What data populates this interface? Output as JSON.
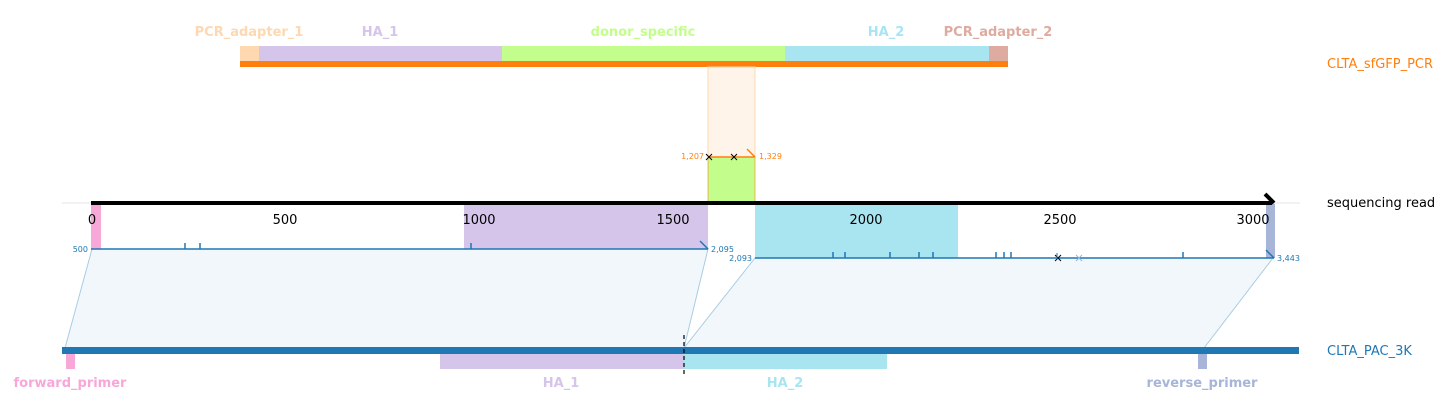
{
  "tracks": {
    "pcr": {
      "name": "CLTA_sfGFP_PCR",
      "color": "#ff7f0e"
    },
    "read": {
      "name": "sequencing read",
      "color": "#000000"
    },
    "pac": {
      "name": "CLTA_PAC_3K",
      "color": "#1f77b4"
    }
  },
  "pcr_features": [
    {
      "label": "PCR_adapter_1",
      "color": "#fdd8b0"
    },
    {
      "label": "HA_1",
      "color": "#d6c5ea"
    },
    {
      "label": "donor_specific",
      "color": "#c3fe8c"
    },
    {
      "label": "HA_2",
      "color": "#a8e5f0"
    },
    {
      "label": "PCR_adapter_2",
      "color": "#deaba0"
    }
  ],
  "pcr_alignment": {
    "start_label": "1,207",
    "end_label": "1,329"
  },
  "read_axis": {
    "ticks": [
      "0",
      "500",
      "1000",
      "1500",
      "2000",
      "2500",
      "3000"
    ]
  },
  "read_alignments": {
    "left": {
      "start_label": "500",
      "end_label": "2,095",
      "color": "#1f77b4"
    },
    "right": {
      "start_label": "2,093",
      "end_label": "3,443",
      "color": "#1f77b4"
    }
  },
  "pac_features": [
    {
      "label": "forward_primer",
      "color": "#f7a8d8"
    },
    {
      "label": "HA_1",
      "color": "#d6c5ea"
    },
    {
      "label": "HA_2",
      "color": "#a8e5f0"
    },
    {
      "label": "reverse_primer",
      "color": "#a6b5d8"
    }
  ]
}
